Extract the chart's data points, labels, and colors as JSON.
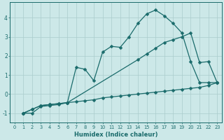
{
  "xlabel": "Humidex (Indice chaleur)",
  "xlim": [
    -0.5,
    23.5
  ],
  "ylim": [
    -1.5,
    4.8
  ],
  "bg_color": "#cce8e8",
  "line_color": "#1a6b6b",
  "grid_color": "#aacccc",
  "line1_x": [
    1,
    2,
    3,
    4,
    5,
    6,
    7,
    8,
    9,
    10,
    11,
    12,
    13,
    14,
    15,
    16,
    17,
    18,
    19,
    20,
    21,
    22,
    23
  ],
  "line1_y": [
    -1.0,
    -1.0,
    -0.65,
    -0.6,
    -0.55,
    -0.45,
    -0.4,
    -0.35,
    -0.3,
    -0.2,
    -0.15,
    -0.1,
    -0.05,
    0.0,
    0.05,
    0.1,
    0.15,
    0.2,
    0.25,
    0.3,
    0.35,
    0.45,
    0.6
  ],
  "line2_x": [
    1,
    2,
    3,
    4,
    5,
    6,
    7,
    8,
    9,
    10,
    11,
    12,
    13,
    14,
    15,
    16,
    17,
    18,
    19,
    20,
    21,
    22,
    23
  ],
  "line2_y": [
    -1.0,
    -0.8,
    -0.6,
    -0.55,
    -0.5,
    -0.45,
    1.4,
    1.3,
    0.7,
    2.2,
    2.5,
    2.45,
    3.0,
    3.7,
    4.2,
    4.4,
    4.1,
    3.7,
    3.2,
    1.7,
    0.6,
    0.6,
    0.6
  ],
  "line3_x": [
    1,
    2,
    3,
    4,
    5,
    6,
    14,
    15,
    16,
    17,
    18,
    19,
    20,
    21,
    22,
    23
  ],
  "line3_y": [
    -1.0,
    -0.8,
    -0.6,
    -0.55,
    -0.5,
    -0.45,
    1.8,
    2.1,
    2.4,
    2.7,
    2.85,
    3.0,
    3.2,
    1.65,
    1.7,
    0.6
  ],
  "yticks": [
    -1,
    0,
    1,
    2,
    3,
    4
  ],
  "xticks": [
    0,
    1,
    2,
    3,
    4,
    5,
    6,
    7,
    8,
    9,
    10,
    11,
    12,
    13,
    14,
    15,
    16,
    17,
    18,
    19,
    20,
    21,
    22,
    23
  ]
}
